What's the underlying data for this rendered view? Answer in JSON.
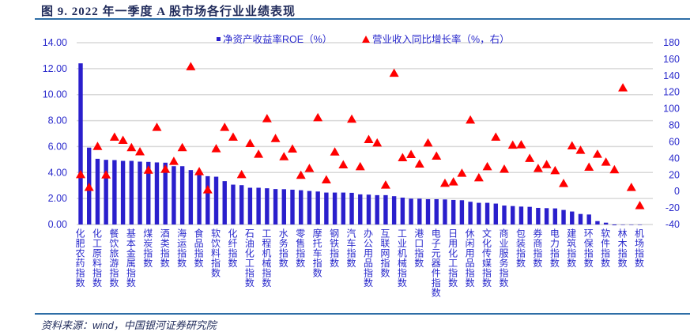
{
  "title": "图 9. 2022 年一季度 A 股市场各行业业绩表现",
  "source": "资料来源：wind，中国银河证券研究院",
  "chart_data": {
    "type": "bar+scatter",
    "title": "",
    "legend_position": "top",
    "grid": true,
    "colors": {
      "roe": "#2a1fcc",
      "revenue": "#ff0000",
      "axis_text": "#2a2acc"
    },
    "left_axis": {
      "ylim": [
        0,
        14
      ],
      "ticks": [
        "0.00",
        "2.00",
        "4.00",
        "6.00",
        "8.00",
        "10.00",
        "12.00",
        "14.00"
      ]
    },
    "right_axis": {
      "ylim": [
        -40,
        180
      ],
      "ticks": [
        "-40",
        "-20",
        "0",
        "20",
        "40",
        "60",
        "80",
        "100",
        "120",
        "140",
        "160",
        "180"
      ]
    },
    "categories": [
      "化肥农药指数",
      "",
      "化工原料指数",
      "",
      "餐饮旅游指数",
      "",
      "基本金属指数",
      "",
      "煤炭指数",
      "",
      "酒类指数",
      "",
      "海运指数",
      "",
      "食品指数",
      "",
      "软饮料指数",
      "",
      "化纤指数",
      "",
      "石油化工指数",
      "",
      "工程机械指数",
      "",
      "水务指数",
      "",
      "零售指数",
      "",
      "摩托车指数",
      "",
      "钢铁指数",
      "",
      "汽车指数",
      "",
      "办公用品指数",
      "",
      "互联网指数",
      "",
      "工业机械指数",
      "",
      "港口指数",
      "",
      "电子元器件指数",
      "",
      "日用化工指数",
      "",
      "休闲用品指数",
      "",
      "文化传媒指数",
      "",
      "商业服务指数",
      "",
      "包装指数",
      "",
      "券商指数",
      "",
      "电力指数",
      "",
      "建筑指数",
      "",
      "环保指数",
      "",
      "软件指数",
      "",
      "林木指数",
      "",
      "机场指数"
    ],
    "series": [
      {
        "name": "净资产收益率ROE（%）",
        "type": "bar",
        "axis": "left",
        "values": [
          12.41,
          5.92,
          5.06,
          4.98,
          4.96,
          4.9,
          4.9,
          4.84,
          4.82,
          4.78,
          4.76,
          4.49,
          4.49,
          4.19,
          3.9,
          3.72,
          3.68,
          3.34,
          3.07,
          3.03,
          2.83,
          2.83,
          2.79,
          2.73,
          2.72,
          2.68,
          2.64,
          2.58,
          2.54,
          2.46,
          2.46,
          2.46,
          2.44,
          2.32,
          2.3,
          2.26,
          2.26,
          2.18,
          2.07,
          1.99,
          1.99,
          1.95,
          1.95,
          1.93,
          1.89,
          1.87,
          1.75,
          1.67,
          1.67,
          1.61,
          1.46,
          1.42,
          1.38,
          1.36,
          1.28,
          1.26,
          1.24,
          1.12,
          1.0,
          0.81,
          0.77,
          0.26,
          0.14,
          -0.05,
          0,
          0,
          0
        ]
      },
      {
        "name": "营业收入同比增长率（%，右）",
        "type": "scatter",
        "marker": "triangle",
        "axis": "right",
        "values": [
          20.4,
          5,
          54.5,
          20,
          65.7,
          61.9,
          53,
          48,
          25.8,
          77.5,
          26.8,
          36.4,
          53,
          151,
          24,
          2,
          51.7,
          77.5,
          65.7,
          20.4,
          58,
          45,
          88,
          64,
          42,
          51.4,
          19.5,
          27.8,
          89.3,
          14,
          47.8,
          32.2,
          87.4,
          30,
          62.8,
          58.7,
          7.7,
          143,
          40.8,
          44.7,
          33.2,
          58.7,
          42.7,
          9.9,
          11.5,
          22,
          86.4,
          16.5,
          30,
          65.7,
          27,
          56,
          56.5,
          40,
          27.8,
          32.5,
          25.2,
          9.6,
          55.2,
          49.8,
          29.3,
          45,
          35.4,
          26.2,
          125.4,
          4.8,
          -17.2
        ]
      }
    ]
  }
}
